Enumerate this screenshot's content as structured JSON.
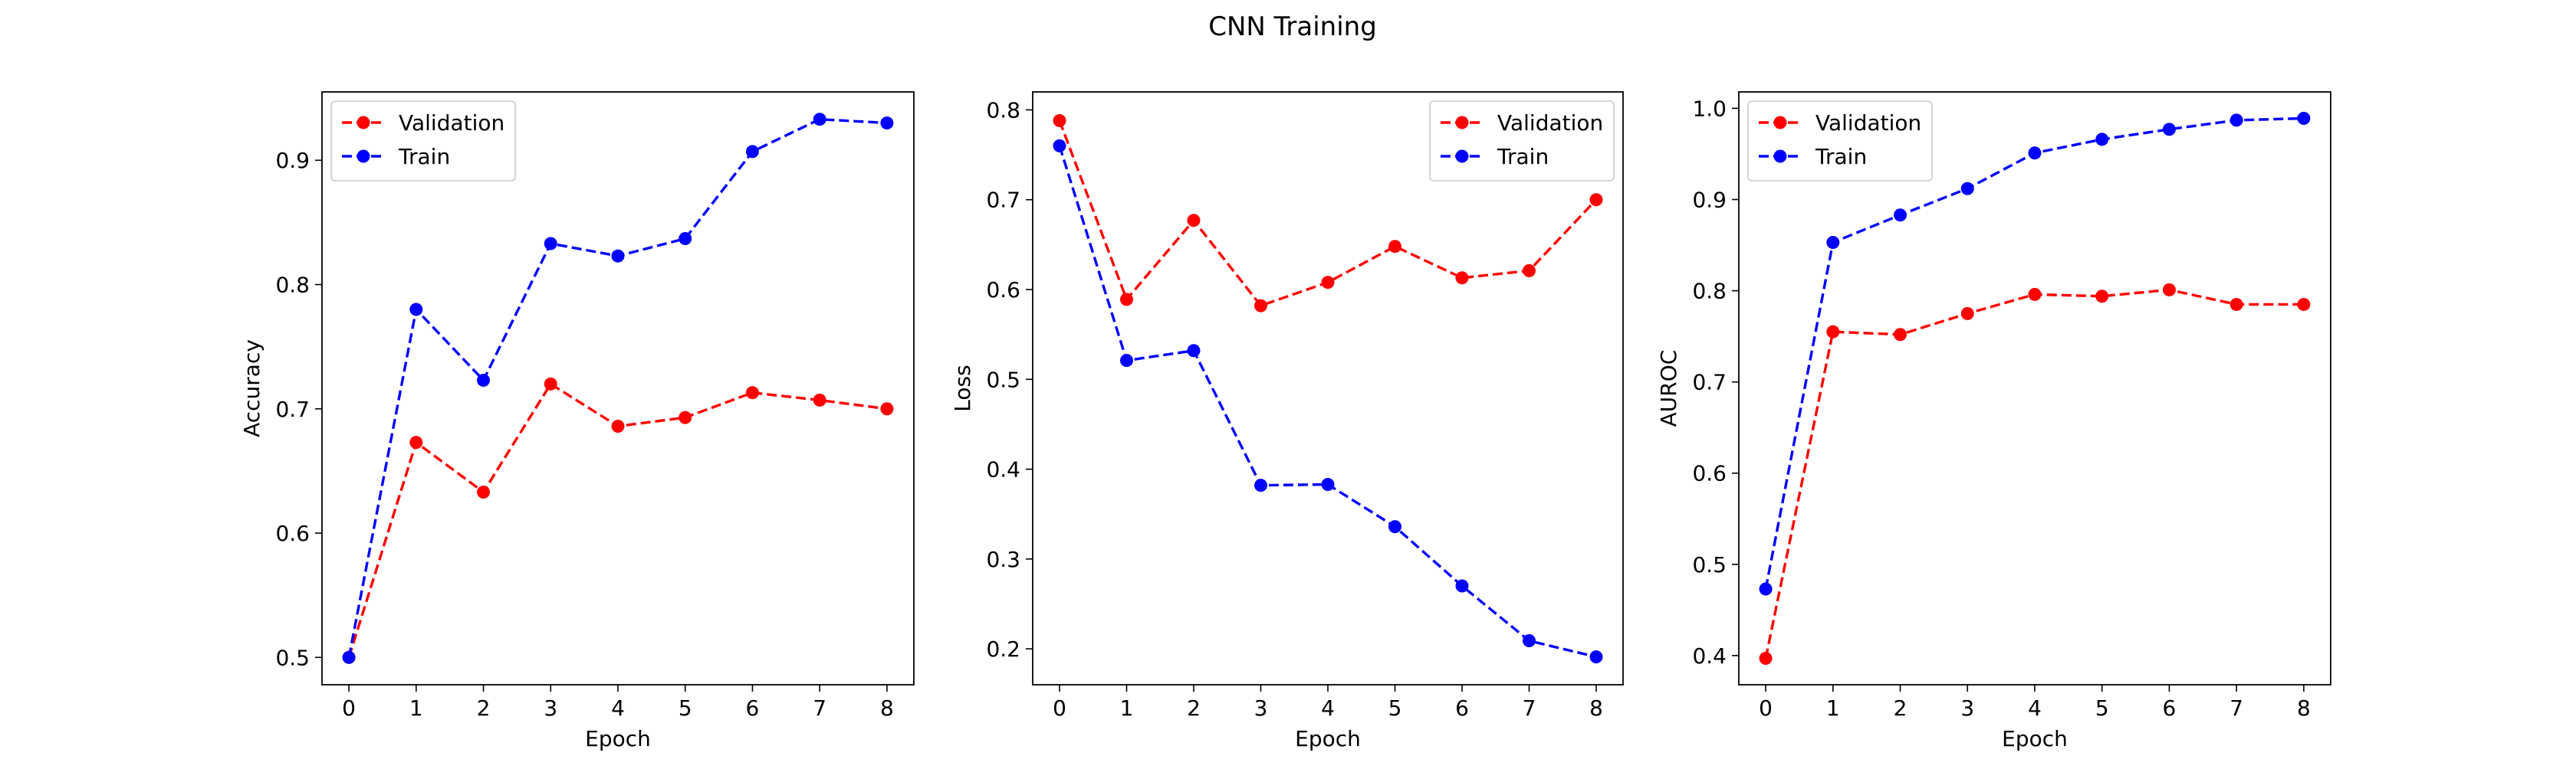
{
  "figure": {
    "title": "CNN Training"
  },
  "chart_data": [
    {
      "type": "line",
      "title": "",
      "xlabel": "Epoch",
      "ylabel": "Accuracy",
      "x": [
        0,
        1,
        2,
        3,
        4,
        5,
        6,
        7,
        8
      ],
      "xticks": [
        0,
        1,
        2,
        3,
        4,
        5,
        6,
        7,
        8
      ],
      "yticks": [
        0.5,
        0.6,
        0.7,
        0.8,
        0.9
      ],
      "xlim": [
        -0.4,
        8.4
      ],
      "ylim": [
        0.478,
        0.955
      ],
      "grid": false,
      "legend_position": "top-left",
      "series": [
        {
          "name": "Validation",
          "color": "#ff0000",
          "marker": "circle",
          "linestyle": "dashed",
          "values": [
            0.5,
            0.673,
            0.633,
            0.72,
            0.686,
            0.693,
            0.713,
            0.707,
            0.7
          ]
        },
        {
          "name": "Train",
          "color": "#0000ff",
          "marker": "circle",
          "linestyle": "dashed",
          "values": [
            0.5,
            0.78,
            0.723,
            0.833,
            0.823,
            0.837,
            0.907,
            0.933,
            0.93
          ]
        }
      ]
    },
    {
      "type": "line",
      "title": "",
      "xlabel": "Epoch",
      "ylabel": "Loss",
      "x": [
        0,
        1,
        2,
        3,
        4,
        5,
        6,
        7,
        8
      ],
      "xticks": [
        0,
        1,
        2,
        3,
        4,
        5,
        6,
        7,
        8
      ],
      "yticks": [
        0.2,
        0.3,
        0.4,
        0.5,
        0.6,
        0.7,
        0.8
      ],
      "xlim": [
        -0.4,
        8.4
      ],
      "ylim": [
        0.16,
        0.82
      ],
      "grid": false,
      "legend_position": "top-right",
      "series": [
        {
          "name": "Validation",
          "color": "#ff0000",
          "marker": "circle",
          "linestyle": "dashed",
          "values": [
            0.788,
            0.589,
            0.677,
            0.582,
            0.608,
            0.648,
            0.613,
            0.621,
            0.7
          ]
        },
        {
          "name": "Train",
          "color": "#0000ff",
          "marker": "circle",
          "linestyle": "dashed",
          "values": [
            0.76,
            0.521,
            0.532,
            0.382,
            0.383,
            0.336,
            0.27,
            0.209,
            0.191
          ]
        }
      ]
    },
    {
      "type": "line",
      "title": "",
      "xlabel": "Epoch",
      "ylabel": "AUROC",
      "x": [
        0,
        1,
        2,
        3,
        4,
        5,
        6,
        7,
        8
      ],
      "xticks": [
        0,
        1,
        2,
        3,
        4,
        5,
        6,
        7,
        8
      ],
      "yticks": [
        0.4,
        0.5,
        0.6,
        0.7,
        0.8,
        0.9,
        1.0
      ],
      "xlim": [
        -0.4,
        8.4
      ],
      "ylim": [
        0.368,
        1.018
      ],
      "grid": false,
      "legend_position": "top-left",
      "series": [
        {
          "name": "Validation",
          "color": "#ff0000",
          "marker": "circle",
          "linestyle": "dashed",
          "values": [
            0.397,
            0.755,
            0.752,
            0.775,
            0.796,
            0.794,
            0.801,
            0.785,
            0.785
          ]
        },
        {
          "name": "Train",
          "color": "#0000ff",
          "marker": "circle",
          "linestyle": "dashed",
          "values": [
            0.473,
            0.853,
            0.883,
            0.912,
            0.951,
            0.966,
            0.977,
            0.987,
            0.989
          ]
        }
      ]
    }
  ]
}
